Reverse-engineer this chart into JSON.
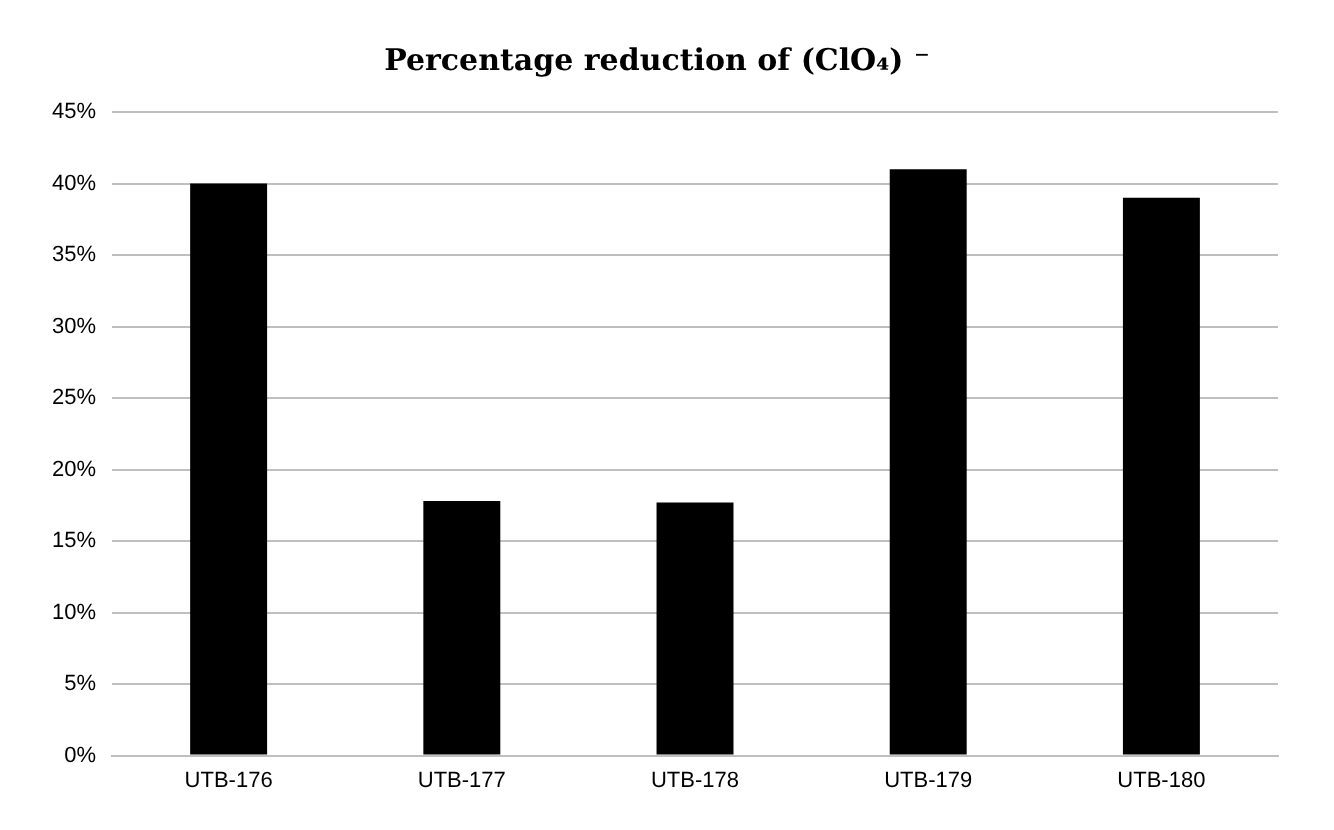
{
  "chart_data": {
    "type": "bar",
    "title": "Percentage reduction of (ClO₄) ⁻",
    "categories": [
      "UTB-176",
      "UTB-177",
      "UTB-178",
      "UTB-179",
      "UTB-180"
    ],
    "values": [
      40,
      17.8,
      17.7,
      41,
      39
    ],
    "color": "#000000",
    "ylim": [
      0,
      45
    ],
    "yticks": [
      {
        "value": 0,
        "label": "0%"
      },
      {
        "value": 5,
        "label": "5%"
      },
      {
        "value": 10,
        "label": "10%"
      },
      {
        "value": 15,
        "label": "15%"
      },
      {
        "value": 20,
        "label": "20%"
      },
      {
        "value": 25,
        "label": "25%"
      },
      {
        "value": 30,
        "label": "30%"
      },
      {
        "value": 35,
        "label": "35%"
      },
      {
        "value": 40,
        "label": "40%"
      },
      {
        "value": 45,
        "label": "45%"
      }
    ],
    "grid": "y"
  }
}
